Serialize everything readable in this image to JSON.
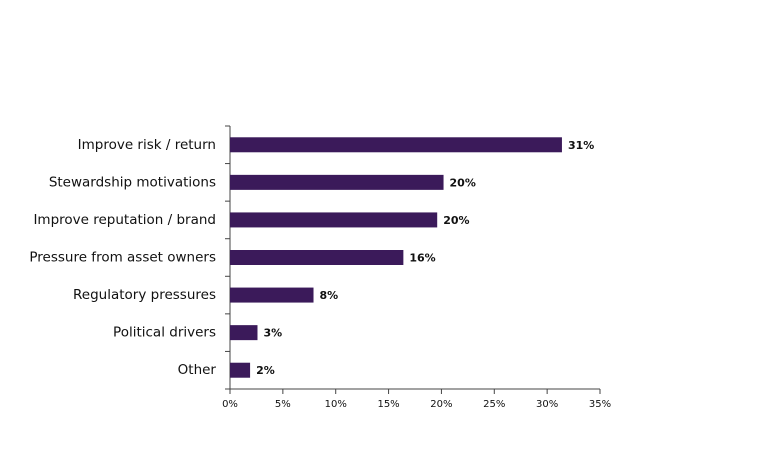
{
  "chart_data": {
    "type": "hbar",
    "categories": [
      "Improve risk / return",
      "Stewardship motivations",
      "Improve reputation / brand",
      "Pressure from asset owners",
      "Regulatory pressures",
      "Political drivers",
      "Other"
    ],
    "values": [
      31.4,
      20.2,
      19.6,
      16.4,
      7.9,
      2.6,
      1.9
    ],
    "value_labels": [
      "31%",
      "20%",
      "20%",
      "16%",
      "8%",
      "3%",
      "2%"
    ],
    "color": "#3b1a5a",
    "xlim": [
      0,
      35
    ],
    "xticks": [
      {
        "value": 0,
        "label": "0%"
      },
      {
        "value": 5,
        "label": "5%"
      },
      {
        "value": 10,
        "label": "10%"
      },
      {
        "value": 15,
        "label": "15%"
      },
      {
        "value": 20,
        "label": "20%"
      },
      {
        "value": 25,
        "label": "25%"
      },
      {
        "value": 30,
        "label": "30%"
      },
      {
        "value": 35,
        "label": "35%"
      }
    ]
  }
}
